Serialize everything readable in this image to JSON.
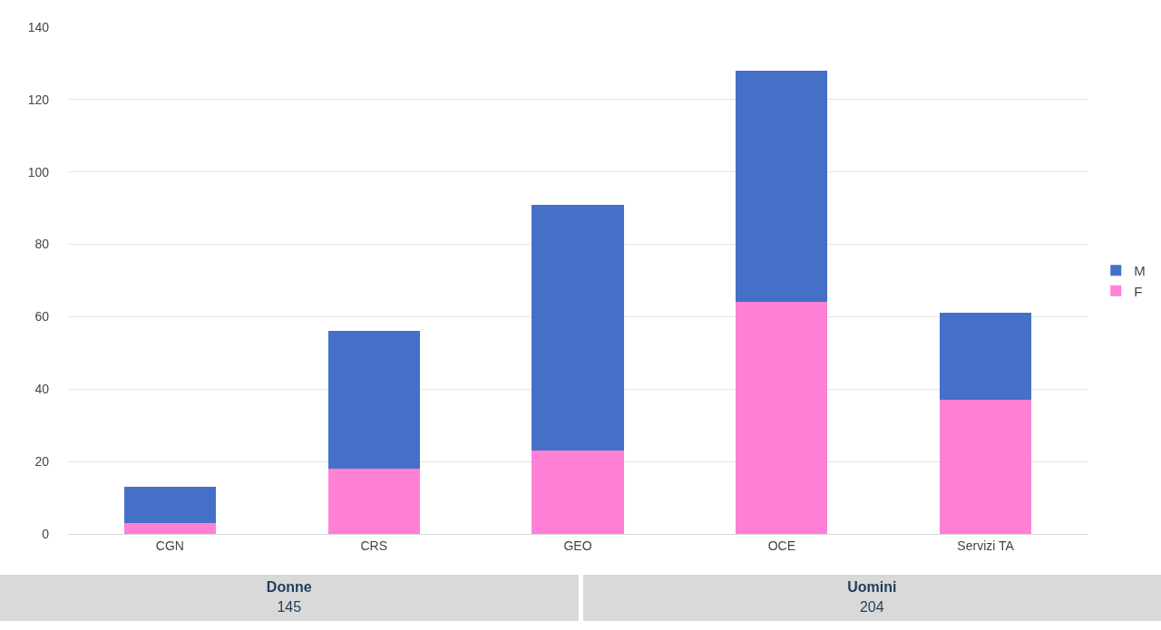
{
  "chart_data": {
    "type": "bar",
    "stacked": true,
    "categories": [
      "CGN",
      "CRS",
      "GEO",
      "OCE",
      "Servizi TA"
    ],
    "series": [
      {
        "name": "F",
        "color": "#ff80d5",
        "values": [
          3,
          18,
          23,
          64,
          37
        ]
      },
      {
        "name": "M",
        "color": "#4470c8",
        "values": [
          10,
          38,
          68,
          64,
          24
        ]
      }
    ],
    "ylim": [
      0,
      140
    ],
    "yticks": [
      0,
      20,
      40,
      60,
      80,
      100,
      120,
      140
    ],
    "grid": "y",
    "legend": "right",
    "annotations": [
      "Donne",
      "145",
      "Uomini",
      "204"
    ]
  }
}
